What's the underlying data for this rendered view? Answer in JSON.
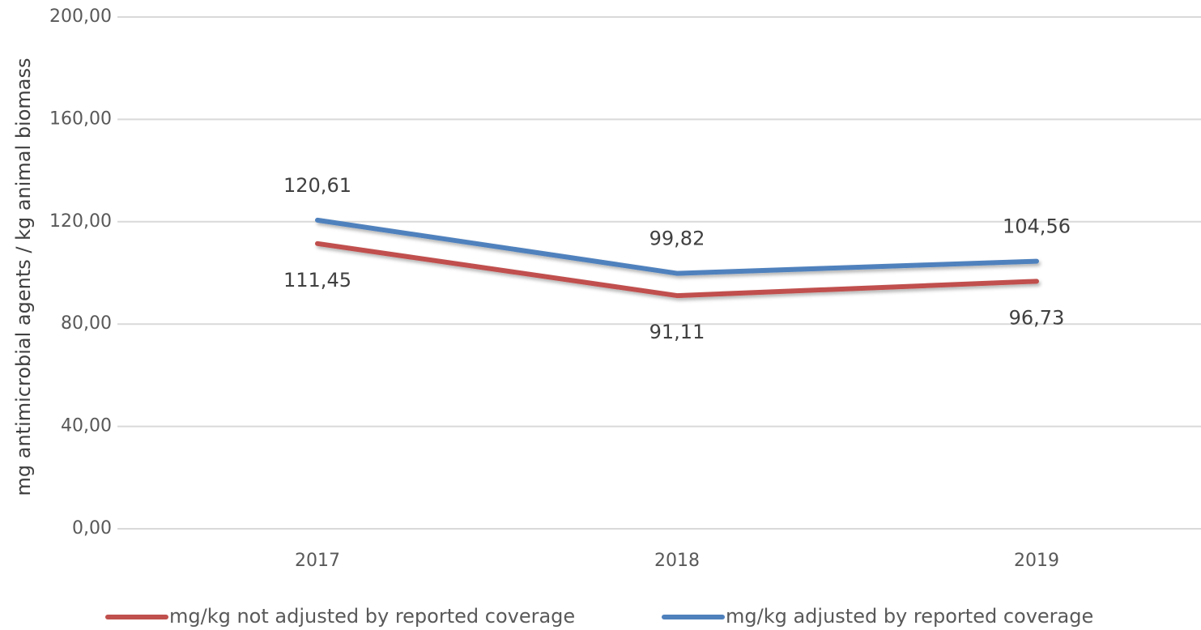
{
  "chart_data": {
    "type": "line",
    "y_axis_label": "mg antimicrobial agents / kg animal biomass",
    "categories": [
      "2017",
      "2018",
      "2019"
    ],
    "series": [
      {
        "name": "mg/kg not adjusted by reported coverage",
        "color": "#c0504d",
        "values": [
          111.45,
          91.11,
          96.73
        ],
        "value_labels": [
          "111,45",
          "91,11",
          "96,73"
        ]
      },
      {
        "name": "mg/kg adjusted by reported coverage",
        "color": "#4f81bd",
        "values": [
          120.61,
          99.82,
          104.56
        ],
        "value_labels": [
          "120,61",
          "99,82",
          "104,56"
        ]
      }
    ],
    "ylim": [
      0,
      200
    ],
    "yticks": [
      {
        "value": 0,
        "label": "0,00"
      },
      {
        "value": 40,
        "label": "40,00"
      },
      {
        "value": 80,
        "label": "80,00"
      },
      {
        "value": 120,
        "label": "120,00"
      },
      {
        "value": 160,
        "label": "160,00"
      },
      {
        "value": 200,
        "label": "200,00"
      }
    ],
    "grid": true
  }
}
